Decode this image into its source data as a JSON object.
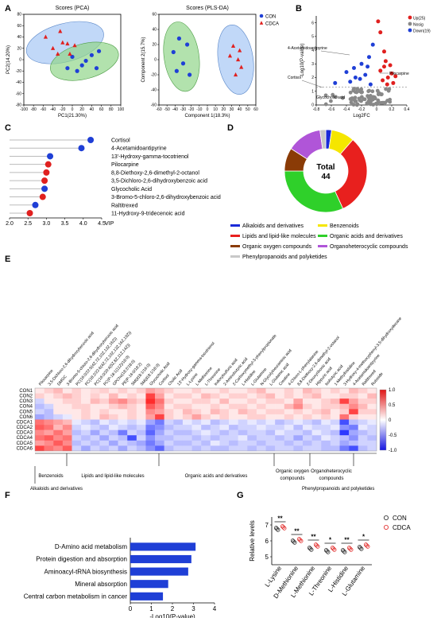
{
  "figure": {
    "panel_labels": [
      "A",
      "B",
      "C",
      "D",
      "E",
      "F",
      "G"
    ]
  },
  "chart_data": [
    {
      "id": "A1",
      "type": "scatter",
      "title": "Scores (PCA)",
      "xlabel": "PC1(21.30%)",
      "ylabel": "PC2(14.20%)",
      "xlim": [
        -100,
        100
      ],
      "ylim": [
        -80,
        80
      ],
      "xticks": [
        "-100",
        "-80",
        "-60",
        "-40",
        "-20",
        "0",
        "20",
        "40",
        "60",
        "80",
        "100"
      ],
      "yticks": [
        "-80",
        "-60",
        "-40",
        "-20",
        "0",
        "20",
        "40",
        "60",
        "80"
      ],
      "series": [
        {
          "name": "CON",
          "marker": "circle",
          "color": "#1f3fd6",
          "points": [
            [
              -10,
              -15
            ],
            [
              0,
              5
            ],
            [
              10,
              -20
            ],
            [
              20,
              -10
            ],
            [
              28,
              -2
            ],
            [
              40,
              8
            ],
            [
              50,
              -15
            ],
            [
              55,
              15
            ]
          ]
        },
        {
          "name": "CDCA",
          "marker": "triangle",
          "color": "#e0201f",
          "points": [
            [
              -55,
              40
            ],
            [
              -40,
              20
            ],
            [
              -25,
              50
            ],
            [
              -10,
              28
            ],
            [
              -5,
              10
            ],
            [
              5,
              25
            ],
            [
              -30,
              10
            ],
            [
              -20,
              30
            ]
          ]
        }
      ]
    },
    {
      "id": "A2",
      "type": "scatter",
      "title": "Scores (PLS-DA)",
      "xlabel": "Component 1(18.3%)",
      "ylabel": "Component 2(15.7%)",
      "xlim": [
        -60,
        60
      ],
      "ylim": [
        -60,
        60
      ],
      "xticks": [
        "-60",
        "-50",
        "-40",
        "-30",
        "-20",
        "-10",
        "0",
        "10",
        "20",
        "30",
        "40",
        "50",
        "60"
      ],
      "yticks": [
        "-60",
        "-40",
        "-20",
        "0",
        "20",
        "40",
        "60"
      ],
      "legend": [
        "CON",
        "CDCA"
      ],
      "series": [
        {
          "name": "CON",
          "marker": "circle",
          "color": "#1f3fd6",
          "points": [
            [
              -42,
              10
            ],
            [
              -38,
              -15
            ],
            [
              -35,
              28
            ],
            [
              -30,
              -5
            ],
            [
              -25,
              20
            ],
            [
              -22,
              -20
            ]
          ]
        },
        {
          "name": "CDCA",
          "marker": "triangle",
          "color": "#e0201f",
          "points": [
            [
              28,
              5
            ],
            [
              32,
              18
            ],
            [
              35,
              -20
            ],
            [
              38,
              0
            ],
            [
              40,
              12
            ],
            [
              42,
              -10
            ]
          ]
        }
      ]
    },
    {
      "id": "B",
      "type": "scatter",
      "xlabel": "Log2FC",
      "ylabel": "-Log10(P-value)",
      "xlim": [
        -0.8,
        0.4
      ],
      "xticks": [
        "-0.8",
        "-0.6",
        "-0.4",
        "-0.2",
        "0",
        "0.2",
        "0.4"
      ],
      "yticks": [
        "0",
        "1",
        "2",
        "3",
        "4",
        "5",
        "6"
      ],
      "legend": [
        "Up(25)",
        "Nosig",
        "Down(19)"
      ],
      "annotations": [
        "4-Acetamidoantipyrine",
        "Pilocarpine",
        "Cortisol",
        "Glycocholic acid"
      ]
    },
    {
      "id": "C",
      "type": "lollipop",
      "xlabel": "VIP",
      "xticks": [
        "2.0",
        "2.5",
        "3.0",
        "3.5",
        "4.0",
        "4.5"
      ],
      "xlim": [
        2.0,
        4.5
      ],
      "items": [
        {
          "label": "Cortisol",
          "value": 4.2,
          "color": "#1f3fd6"
        },
        {
          "label": "4-Acetamidoantipyrine",
          "value": 3.95,
          "color": "#1f3fd6"
        },
        {
          "label": "13'-Hydroxy-gamma-tocotrienol",
          "value": 3.1,
          "color": "#1f3fd6"
        },
        {
          "label": "Pilocarpine",
          "value": 3.05,
          "color": "#e0201f"
        },
        {
          "label": "8,8-Diethoxy-2,6-dimethyl-2-octanol",
          "value": 3.0,
          "color": "#e0201f"
        },
        {
          "label": "3,5-Dichloro-2,6-dihydroxybenzoic acid",
          "value": 2.95,
          "color": "#e0201f"
        },
        {
          "label": "Glycocholic Acid",
          "value": 2.95,
          "color": "#1f3fd6"
        },
        {
          "label": "3-Bromo-5-chloro-2,6-dihydroxybenzoic acid",
          "value": 2.9,
          "color": "#e0201f"
        },
        {
          "label": "Raltitrexed",
          "value": 2.7,
          "color": "#1f3fd6"
        },
        {
          "label": "11-Hydroxy-9-tridecenoic acid",
          "value": 2.55,
          "color": "#e0201f"
        }
      ]
    },
    {
      "id": "D",
      "type": "pie",
      "center_label": "Total",
      "center_value": "44",
      "slices": [
        {
          "label": "Alkaloids and derivatives",
          "value": 1,
          "color": "#1a2ad8"
        },
        {
          "label": "Benzenoids",
          "value": 4,
          "color": "#f5e600"
        },
        {
          "label": "Lipids and lipid-like molecules",
          "value": 14,
          "color": "#e8201e"
        },
        {
          "label": "Organic acids and derivatives",
          "value": 14,
          "color": "#2fd02a"
        },
        {
          "label": "Organic oxygen compounds",
          "value": 4,
          "color": "#8a3b06"
        },
        {
          "label": "Organoheterocyclic compounds",
          "value": 6,
          "color": "#b055d8"
        },
        {
          "label": "Phenylpropanoids and polyketides",
          "value": 1,
          "color": "#c8c8c8"
        }
      ]
    },
    {
      "id": "E",
      "type": "heatmap",
      "rows": [
        "CON1",
        "CON2",
        "CON3",
        "CON4",
        "CON5",
        "CON6",
        "CDCA1",
        "CDCA2",
        "CDCA3",
        "CDCA4",
        "CDCA5",
        "CDCA6"
      ],
      "columns": [
        "Pilocarpine",
        "3,5-Dichloro-2,6-dihydroxybenzoic acid",
        "DMGC",
        "3-Bromo-5-chloro-2,6-dihydroxybenzoic acid",
        "PC(16:0/22:5(4Z,7Z,10Z,13Z,16Z))",
        "PC(18:2/22:6(4Z,7Z,10Z,13Z,16Z,19Z))",
        "PC(16:0/20:4(5Z,8Z,11Z,14Z))",
        "PC(P-18:1(11Z)/18:0)",
        "GPCho(18:2/18:0)",
        "PE(P-16:0/18:2)",
        "SM(d18:1/16:0)",
        "SM(d18:1/18:0)",
        "Glycocholic Acid",
        "Cortisol",
        "Cholic Acid",
        "13'-Hydroxy-gamma-tocotrienol",
        "L-Lysine",
        "L-Methionine",
        "L-Threonine",
        "Indoxylsulfuric acid",
        "2-Aminobutyric acid",
        "2-Carboxymethyl-3-phenylpropionate",
        "L-Histidine",
        "L-Glutamine",
        "N-Glycolylneuraminic acid",
        "L-Glutamic acid",
        "Creatine",
        "4-Chloro-L-phenylalanine",
        "8,8-Diethoxy-2,6-dimethyl-2-octanol",
        "2-Deoxyribonic acid",
        "Hippuric acid",
        "Isobutyric acid",
        "1-Methylhistidine",
        "3-Hydroxy-4-methoxyphenyl-3,5-dihydroxydecane",
        "4-Acetamidoantipyrine",
        "Raltitrexed",
        "Rutoside"
      ],
      "colorbar": {
        "min": -1.0,
        "max": 1.0,
        "ticks": [
          "1.0",
          "0.5",
          "0",
          "-0.5",
          "-1.0"
        ]
      },
      "groups": [
        "Benzenoids",
        "Lipids and lipid-like molecules",
        "Organic acids and derivatives",
        "Organic oxygen compounds",
        "Organoheterocyclic compounds"
      ],
      "bottom_groups": [
        "Alkaloids and derivatives",
        "Phenylpropanoids and polyketides"
      ]
    },
    {
      "id": "F",
      "type": "bar",
      "orientation": "horizontal",
      "xlabel": "-Log10(P-value)",
      "xlim": [
        0,
        4
      ],
      "xticks": [
        "0",
        "1",
        "2",
        "3",
        "4"
      ],
      "categories": [
        "D-Amino acid metabolism",
        "Protein digestion and absorption",
        "Aminoacyl-tRNA biosynthesis",
        "Mineral absorption",
        "Central carbon metabolism in cancer"
      ],
      "values": [
        3.1,
        2.9,
        2.75,
        1.8,
        1.55
      ]
    },
    {
      "id": "G",
      "type": "scatter",
      "ylabel": "Relative levels",
      "ylim": [
        4.5,
        7.5
      ],
      "yticks": [
        "5",
        "6",
        "7"
      ],
      "categories": [
        "L-Lysine",
        "D-Methionine",
        "L-Methionine",
        "L-Threonine",
        "L-Histidine",
        "L-Glutamine"
      ],
      "significance": [
        "**",
        "**",
        "**",
        "*",
        "**",
        "*"
      ],
      "legend": [
        "CON",
        "CDCA"
      ],
      "series": [
        {
          "name": "CON",
          "color": "#222",
          "values": [
            6.75,
            5.95,
            5.5,
            5.35,
            5.35,
            5.55
          ]
        },
        {
          "name": "CDCA",
          "color": "#e0201f",
          "values": [
            6.85,
            6.05,
            5.7,
            5.5,
            5.5,
            5.7
          ]
        }
      ]
    }
  ]
}
